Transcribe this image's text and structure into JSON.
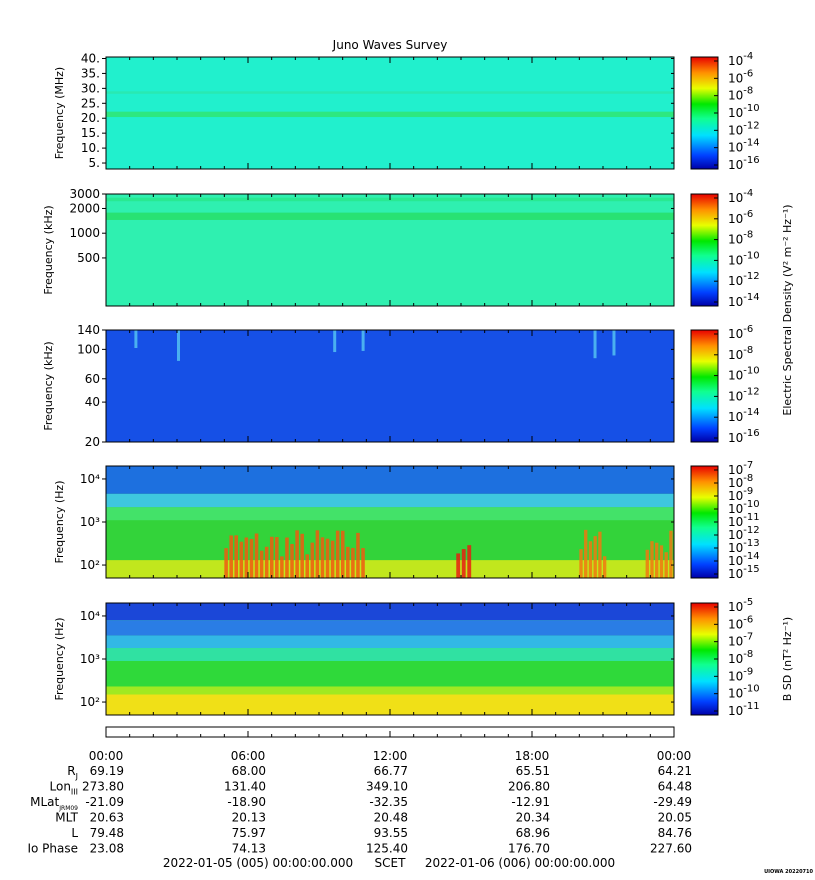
{
  "chart_data": {
    "type": "heatmap",
    "title": "Juno Waves Survey",
    "panels": [
      {
        "ylabel": "Frequency (MHz)",
        "scale": "linear",
        "ylim": [
          3,
          40.5
        ],
        "yticks": [
          {
            "v": 5,
            "label": "5."
          },
          {
            "v": 10,
            "label": "10."
          },
          {
            "v": 15,
            "label": "15."
          },
          {
            "v": 20,
            "label": "20."
          },
          {
            "v": 25,
            "label": "25."
          },
          {
            "v": 30,
            "label": "30."
          },
          {
            "v": 35,
            "label": "35."
          },
          {
            "v": 40,
            "label": "40."
          }
        ],
        "colorbar_exponents": [
          -4,
          -6,
          -8,
          -10,
          -12,
          -14,
          -16
        ],
        "colorbar_label": "",
        "base_color": "#21f0cd",
        "features": [
          {
            "kind": "band",
            "ylo": 20.4,
            "yhi": 22.2,
            "color": "#2ee77a"
          },
          {
            "kind": "band",
            "ylo": 28.2,
            "yhi": 29.0,
            "color": "#2ae8b0"
          }
        ]
      },
      {
        "ylabel": "Frequency (kHz)",
        "scale": "log",
        "ylim": [
          130,
          3000
        ],
        "yticks": [
          {
            "v": 500,
            "label": "500"
          },
          {
            "v": 1000,
            "label": "1000"
          },
          {
            "v": 2000,
            "label": "2000"
          },
          {
            "v": 3000,
            "label": "3000"
          }
        ],
        "colorbar_exponents": [
          -4,
          -6,
          -8,
          -10,
          -12,
          -14
        ],
        "colorbar_label": "",
        "base_color": "#2ff0b0",
        "features": [
          {
            "kind": "band",
            "ylo": 1450,
            "yhi": 1780,
            "color": "#28e070"
          },
          {
            "kind": "band",
            "ylo": 2450,
            "yhi": 2700,
            "color": "#29e890"
          }
        ]
      },
      {
        "ylabel": "Frequency (kHz)",
        "scale": "log",
        "ylim": [
          20,
          140
        ],
        "yticks": [
          {
            "v": 20,
            "label": "20"
          },
          {
            "v": 40,
            "label": "40"
          },
          {
            "v": 60,
            "label": "60"
          },
          {
            "v": 100,
            "label": "100"
          },
          {
            "v": 140,
            "label": "140"
          }
        ],
        "colorbar_exponents": [
          -6,
          -8,
          -10,
          -12,
          -14,
          -16
        ],
        "colorbar_label": "Electric Spectral Density (V² m⁻² Hz⁻¹)",
        "base_color": "#1650e6",
        "features": [
          {
            "kind": "streak",
            "color": "#58c8f2"
          }
        ]
      },
      {
        "ylabel": "Frequency (Hz)",
        "scale": "log",
        "ylim": [
          50,
          20000
        ],
        "yticks": [
          {
            "v": 100,
            "label": "10²"
          },
          {
            "v": 1000,
            "label": "10³"
          },
          {
            "v": 10000,
            "label": "10⁴"
          }
        ],
        "colorbar_exponents": [
          -7,
          -8,
          -9,
          -10,
          -11,
          -12,
          -13,
          -14,
          -15
        ],
        "colorbar_label": "",
        "base_color": "#33d33a",
        "features": [
          {
            "kind": "band",
            "ylo": 4500,
            "yhi": 20000,
            "color": "#1c6ae8"
          },
          {
            "kind": "band",
            "ylo": 2200,
            "yhi": 4500,
            "color": "#3fc6e8"
          },
          {
            "kind": "band",
            "ylo": 1100,
            "yhi": 2200,
            "color": "#44e36c"
          },
          {
            "kind": "band",
            "ylo": 50,
            "yhi": 130,
            "color": "#c9e81b"
          },
          {
            "kind": "burst",
            "x0": 5.0,
            "x1": 11.0,
            "color": "#f05a10"
          },
          {
            "kind": "burst",
            "x0": 14.8,
            "x1": 15.5,
            "color": "#e81f10"
          },
          {
            "kind": "burst",
            "x0": 20.0,
            "x1": 21.2,
            "color": "#f07810"
          },
          {
            "kind": "burst",
            "x0": 22.8,
            "x1": 24.0,
            "color": "#f07810"
          }
        ]
      },
      {
        "ylabel": "Frequency (Hz)",
        "scale": "log",
        "ylim": [
          50,
          20000
        ],
        "yticks": [
          {
            "v": 100,
            "label": "10²"
          },
          {
            "v": 1000,
            "label": "10³"
          },
          {
            "v": 10000,
            "label": "10⁴"
          }
        ],
        "colorbar_exponents": [
          -5,
          -6,
          -7,
          -8,
          -9,
          -10,
          -11
        ],
        "colorbar_label": "B SD (nT² Hz⁻¹)",
        "base_color": "#2fd93a",
        "features": [
          {
            "kind": "band",
            "ylo": 8000,
            "yhi": 20000,
            "color": "#1a3fe0"
          },
          {
            "kind": "band",
            "ylo": 3500,
            "yhi": 8000,
            "color": "#2a78ee"
          },
          {
            "kind": "band",
            "ylo": 1800,
            "yhi": 3500,
            "color": "#33b6ee"
          },
          {
            "kind": "band",
            "ylo": 900,
            "yhi": 1800,
            "color": "#30e2a8"
          },
          {
            "kind": "band",
            "ylo": 150,
            "yhi": 230,
            "color": "#a6ea20"
          },
          {
            "kind": "band",
            "ylo": 50,
            "yhi": 150,
            "color": "#fbe015"
          }
        ]
      }
    ],
    "x_hours_range": [
      0,
      24
    ],
    "x_tick_labels": [
      "00:00",
      "06:00",
      "12:00",
      "18:00",
      "00:00"
    ],
    "ephemeris": [
      {
        "label": "R",
        "sub": "J",
        "values": [
          "69.19",
          "68.00",
          "66.77",
          "65.51",
          "64.21"
        ]
      },
      {
        "label": "Lon",
        "sub": "III",
        "values": [
          "273.80",
          "131.40",
          "349.10",
          "206.80",
          "64.48"
        ]
      },
      {
        "label": "MLat",
        "sub": "JRM09",
        "values": [
          "-21.09",
          "-18.90",
          "-32.35",
          "-12.91",
          "-29.49"
        ]
      },
      {
        "label": "MLT",
        "sub": "",
        "values": [
          "20.63",
          "20.13",
          "20.48",
          "20.34",
          "20.05"
        ]
      },
      {
        "label": "L",
        "sub": "",
        "values": [
          "79.48",
          "75.97",
          "93.55",
          "68.96",
          "84.76"
        ]
      },
      {
        "label": "Io Phase",
        "sub": "",
        "values": [
          "23.08",
          "74.13",
          "125.40",
          "176.70",
          "227.60"
        ]
      }
    ],
    "time_start": "2022-01-05 (005) 00:00:00.000",
    "time_label": "SCET",
    "time_end": "2022-01-06 (006) 00:00:00.000",
    "credit": "UIOWA 20220710"
  }
}
